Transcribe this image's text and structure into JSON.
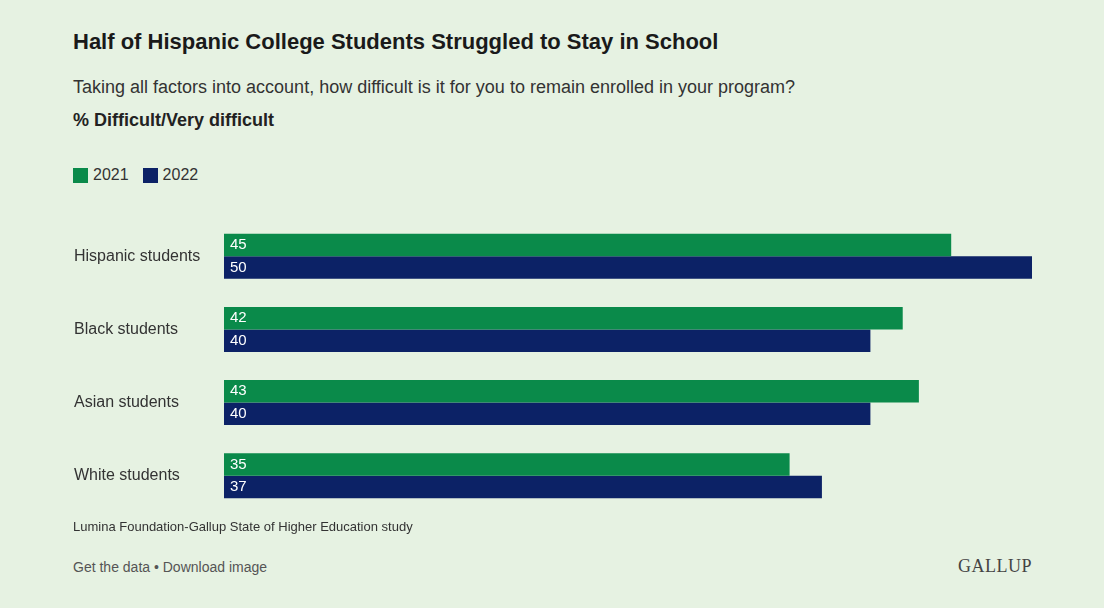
{
  "chart_data": {
    "type": "bar",
    "orientation": "horizontal",
    "title": "Half of Hispanic College Students Struggled to Stay in School",
    "subtitle": "Taking all factors into account, how difficult is it for you to remain enrolled in your program?",
    "note": "% Difficult/Very difficult",
    "categories": [
      "Hispanic students",
      "Black students",
      "Asian students",
      "White students"
    ],
    "series": [
      {
        "name": "2021",
        "color": "#0a8a4a",
        "values": [
          45,
          42,
          43,
          35
        ]
      },
      {
        "name": "2022",
        "color": "#0c2266",
        "values": [
          50,
          40,
          40,
          37
        ]
      }
    ],
    "xlim": [
      0,
      50
    ],
    "data_labels": true,
    "tick_labels": "y",
    "grid": false,
    "legend": "top-left",
    "source": "Lumina Foundation-Gallup State of Higher Education study",
    "footer": "Get the data • Download image",
    "brand": "GALLUP"
  }
}
